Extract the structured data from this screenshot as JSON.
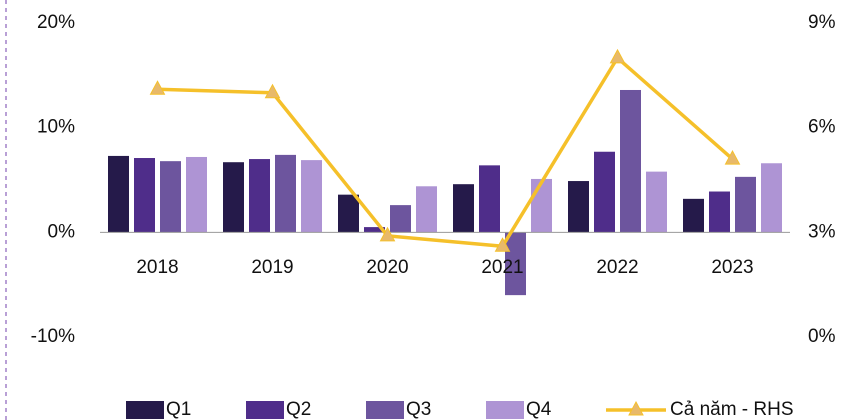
{
  "chart_data": {
    "type": "bar",
    "categories": [
      "2018",
      "2019",
      "2020",
      "2021",
      "2022",
      "2023"
    ],
    "series": [
      {
        "name": "Q1",
        "color": "#251a4a",
        "values": [
          7.3,
          6.7,
          3.6,
          4.6,
          4.9,
          3.2
        ]
      },
      {
        "name": "Q2",
        "color": "#4f2d8a",
        "values": [
          7.1,
          7.0,
          0.5,
          6.4,
          7.7,
          3.9
        ]
      },
      {
        "name": "Q3",
        "color": "#6d559e",
        "values": [
          6.8,
          7.4,
          2.6,
          -6.0,
          13.6,
          5.3
        ]
      },
      {
        "name": "Q4",
        "color": "#ae94d4",
        "values": [
          7.2,
          6.9,
          4.4,
          5.1,
          5.8,
          6.6
        ]
      },
      {
        "name": "Cả năm - RHS",
        "color": "#f5c02a",
        "type": "line",
        "axis": "y2",
        "values": [
          7.1,
          7.0,
          2.9,
          2.6,
          8.0,
          5.1
        ]
      }
    ],
    "ylim": [
      -10,
      20
    ],
    "yticks": [
      {
        "value": -10,
        "label": "-10%"
      },
      {
        "value": 0,
        "label": "0%"
      },
      {
        "value": 10,
        "label": "10%"
      },
      {
        "value": 20,
        "label": "20%"
      }
    ],
    "y2lim": [
      0,
      9
    ],
    "y2ticks": [
      {
        "value": 0,
        "label": "0%"
      },
      {
        "value": 3,
        "label": "3%"
      },
      {
        "value": 6,
        "label": "6%"
      },
      {
        "value": 9,
        "label": "9%"
      }
    ],
    "legend": "bottom"
  }
}
